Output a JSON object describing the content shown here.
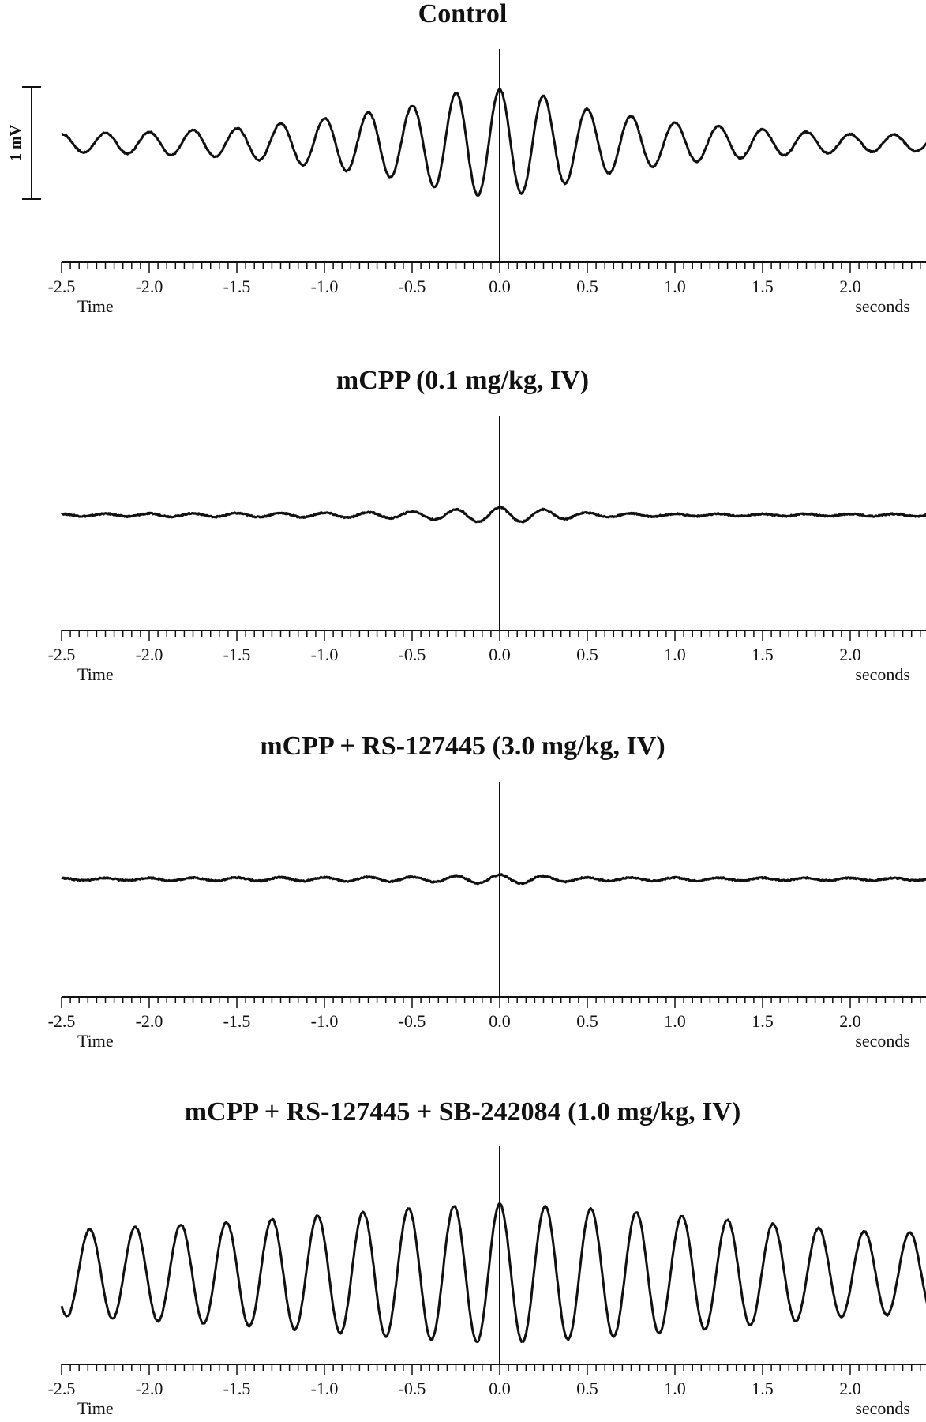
{
  "chart_data": [
    {
      "type": "line",
      "title": "Control",
      "xlabel_left": "Time",
      "xlabel_right": "seconds",
      "x_range": [
        -2.5,
        2.45
      ],
      "x_ticks": [
        "-2.5",
        "-2.0",
        "-1.5",
        "-1.0",
        "-0.5",
        "0.0",
        "0.5",
        "1.0",
        "1.5",
        "2.0"
      ],
      "scale_bar": "1 mV",
      "oscillation_period_s": 0.25,
      "x": [
        -2.5,
        -2.0,
        -1.5,
        -1.0,
        -0.5,
        -0.25,
        0.0,
        0.25,
        0.5,
        1.0,
        1.5,
        2.0,
        2.45
      ],
      "amplitude_mV": [
        0.08,
        0.1,
        0.13,
        0.22,
        0.33,
        0.45,
        0.48,
        0.42,
        0.3,
        0.18,
        0.12,
        0.08,
        0.07
      ]
    },
    {
      "type": "line",
      "title": "mCPP (0.1 mg/kg, IV)",
      "xlabel_left": "Time",
      "xlabel_right": "seconds",
      "x_range": [
        -2.5,
        2.45
      ],
      "x_ticks": [
        "-2.5",
        "-2.0",
        "-1.5",
        "-1.0",
        "-0.5",
        "0.0",
        "0.5",
        "1.0",
        "1.5",
        "2.0"
      ],
      "oscillation_period_s": 0.25,
      "x": [
        -2.5,
        -1.0,
        -0.5,
        -0.25,
        0.0,
        0.25,
        0.5,
        1.0,
        2.45
      ],
      "amplitude_mV": [
        0.01,
        0.02,
        0.03,
        0.05,
        0.07,
        0.05,
        0.02,
        0.01,
        0.01
      ]
    },
    {
      "type": "line",
      "title": "mCPP + RS-127445 (3.0 mg/kg, IV)",
      "xlabel_left": "Time",
      "xlabel_right": "seconds",
      "x_range": [
        -2.5,
        2.45
      ],
      "x_ticks": [
        "-2.5",
        "-2.0",
        "-1.5",
        "-1.0",
        "-0.5",
        "0.0",
        "0.5",
        "1.0",
        "1.5",
        "2.0"
      ],
      "oscillation_period_s": 0.25,
      "x": [
        -2.5,
        -0.5,
        -0.25,
        0.0,
        0.25,
        0.5,
        2.45
      ],
      "amplitude_mV": [
        0.01,
        0.02,
        0.03,
        0.04,
        0.03,
        0.015,
        0.01
      ]
    },
    {
      "type": "line",
      "title": "mCPP + RS-127445 + SB-242084 (1.0 mg/kg, IV)",
      "xlabel_left": "Time",
      "xlabel_right": "seconds",
      "x_range": [
        -2.5,
        2.45
      ],
      "x_ticks": [
        "-2.5",
        "-2.0",
        "-1.5",
        "-1.0",
        "-0.5",
        "0.0",
        "0.5",
        "1.0",
        "1.5",
        "2.0"
      ],
      "oscillation_period_s": 0.26,
      "x": [
        -2.5,
        -1.5,
        -1.0,
        -0.5,
        0.0,
        0.5,
        1.0,
        1.5,
        2.0,
        2.45
      ],
      "amplitude_mV": [
        0.38,
        0.46,
        0.52,
        0.58,
        0.62,
        0.58,
        0.52,
        0.45,
        0.38,
        0.36
      ]
    }
  ]
}
